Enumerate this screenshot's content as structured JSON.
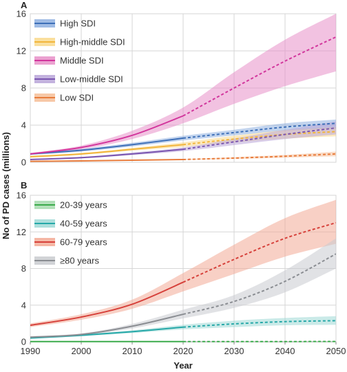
{
  "shared": {
    "xlabel": "Year",
    "ylabel": "No of PD cases (millions)",
    "x_ticks": [
      "1990",
      "2000",
      "2010",
      "2020",
      "2030",
      "2040",
      "2050"
    ],
    "projection_start_year": 2020
  },
  "chart_data": [
    {
      "panel": "A",
      "type": "line",
      "xlabel": "Year",
      "ylabel": "No of PD cases (millions)",
      "ylim": [
        0,
        16
      ],
      "xlim": [
        1990,
        2050
      ],
      "y_ticks": [
        "0",
        "4",
        "8",
        "12",
        "16"
      ],
      "grid": true,
      "legend_position": "top-left",
      "series": [
        {
          "name": "High SDI",
          "color": "#3d6fb8",
          "band_color": "#8fb0e0",
          "x": [
            1990,
            2000,
            2010,
            2020,
            2030,
            2040,
            2050
          ],
          "y": [
            0.9,
            1.3,
            1.9,
            2.6,
            3.2,
            3.8,
            4.2
          ],
          "lower": [
            0.8,
            1.15,
            1.7,
            2.35,
            2.9,
            3.4,
            3.6
          ],
          "upper": [
            1.0,
            1.45,
            2.1,
            2.85,
            3.5,
            4.2,
            4.6
          ]
        },
        {
          "name": "High-middle SDI",
          "color": "#f2b53c",
          "band_color": "#f9d98c",
          "x": [
            1990,
            2000,
            2010,
            2020,
            2030,
            2040,
            2050
          ],
          "y": [
            0.6,
            0.9,
            1.4,
            1.9,
            2.5,
            3.0,
            3.3
          ],
          "lower": [
            0.5,
            0.8,
            1.25,
            1.65,
            2.15,
            2.55,
            2.8
          ],
          "upper": [
            0.7,
            1.0,
            1.55,
            2.15,
            2.85,
            3.45,
            3.8
          ]
        },
        {
          "name": "Middle SDI",
          "color": "#d2359c",
          "band_color": "#e890c8",
          "x": [
            1990,
            2000,
            2010,
            2020,
            2030,
            2040,
            2050
          ],
          "y": [
            0.9,
            1.6,
            2.9,
            5.0,
            8.0,
            10.9,
            13.5
          ],
          "lower": [
            0.8,
            1.4,
            2.5,
            4.2,
            6.3,
            8.2,
            9.8
          ],
          "upper": [
            1.0,
            1.8,
            3.4,
            5.9,
            9.7,
            13.2,
            16.0
          ]
        },
        {
          "name": "Low-middle SDI",
          "color": "#7a55b0",
          "band_color": "#b9a5d8",
          "x": [
            1990,
            2000,
            2010,
            2020,
            2030,
            2040,
            2050
          ],
          "y": [
            0.3,
            0.5,
            0.9,
            1.4,
            2.2,
            3.0,
            3.7
          ],
          "lower": [
            0.25,
            0.42,
            0.78,
            1.2,
            1.85,
            2.5,
            3.0
          ],
          "upper": [
            0.35,
            0.58,
            1.05,
            1.6,
            2.55,
            3.5,
            4.4
          ]
        },
        {
          "name": "Low SDI",
          "color": "#e87c3c",
          "band_color": "#f6be98",
          "x": [
            1990,
            2000,
            2010,
            2020,
            2030,
            2040,
            2050
          ],
          "y": [
            0.1,
            0.15,
            0.22,
            0.3,
            0.45,
            0.65,
            0.9
          ],
          "lower": [
            0.08,
            0.12,
            0.18,
            0.25,
            0.36,
            0.5,
            0.65
          ],
          "upper": [
            0.12,
            0.18,
            0.26,
            0.35,
            0.55,
            0.8,
            1.15
          ]
        }
      ]
    },
    {
      "panel": "B",
      "type": "line",
      "xlabel": "Year",
      "ylabel": "No of PD cases (millions)",
      "ylim": [
        0,
        16
      ],
      "xlim": [
        1990,
        2050
      ],
      "y_ticks": [
        "0",
        "4",
        "8",
        "12",
        "16"
      ],
      "grid": true,
      "legend_position": "top-left",
      "series": [
        {
          "name": "20-39 years",
          "color": "#3aaa4a",
          "band_color": "#a6dbae",
          "x": [
            1990,
            2000,
            2010,
            2020,
            2030,
            2040,
            2050
          ],
          "y": [
            0.02,
            0.02,
            0.02,
            0.02,
            0.02,
            0.02,
            0.03
          ],
          "lower": [
            0.01,
            0.01,
            0.01,
            0.01,
            0.01,
            0.01,
            0.01
          ],
          "upper": [
            0.03,
            0.03,
            0.03,
            0.03,
            0.04,
            0.05,
            0.06
          ]
        },
        {
          "name": "40-59 years",
          "color": "#25a8a8",
          "band_color": "#9fd9d6",
          "x": [
            1990,
            2000,
            2010,
            2020,
            2030,
            2040,
            2050
          ],
          "y": [
            0.4,
            0.7,
            1.1,
            1.6,
            1.95,
            2.2,
            2.3
          ],
          "lower": [
            0.35,
            0.6,
            0.95,
            1.35,
            1.6,
            1.8,
            1.85
          ],
          "upper": [
            0.45,
            0.8,
            1.25,
            1.85,
            2.3,
            2.6,
            2.8
          ]
        },
        {
          "name": "60-79 years",
          "color": "#d6403a",
          "band_color": "#f3aa95",
          "x": [
            1990,
            2000,
            2010,
            2020,
            2030,
            2040,
            2050
          ],
          "y": [
            1.8,
            2.7,
            4.1,
            6.5,
            9.0,
            11.3,
            13.0
          ],
          "lower": [
            1.6,
            2.4,
            3.6,
            5.5,
            7.4,
            9.3,
            10.7
          ],
          "upper": [
            2.0,
            3.0,
            4.6,
            7.5,
            10.6,
            13.5,
            15.5
          ]
        },
        {
          "name": "≥80 years",
          "color": "#8a8d92",
          "band_color": "#c9cbcf",
          "x": [
            1990,
            2000,
            2010,
            2020,
            2030,
            2040,
            2050
          ],
          "y": [
            0.5,
            0.8,
            1.7,
            3.0,
            4.4,
            6.6,
            9.6
          ],
          "lower": [
            0.4,
            0.7,
            1.45,
            2.55,
            3.7,
            5.4,
            8.0
          ],
          "upper": [
            0.6,
            0.9,
            1.95,
            3.5,
            5.1,
            7.8,
            11.3
          ]
        }
      ]
    }
  ]
}
